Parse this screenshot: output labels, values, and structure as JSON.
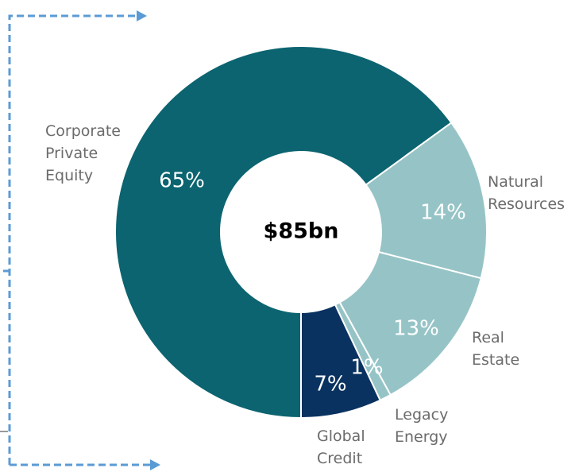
{
  "chart_data": {
    "type": "donut",
    "center_label": "$85bn",
    "categories": [
      "Corporate\nPrivate\nEquity",
      "Natural\nResources",
      "Real\nEstate",
      "Legacy\nEnergy",
      "Global\nCredit"
    ],
    "values": [
      65,
      14,
      13,
      1,
      7
    ],
    "value_labels": [
      "65%",
      "14%",
      "13%",
      "1%",
      "7%"
    ],
    "colors": [
      "#0b6470",
      "#96c4c6",
      "#96c4c6",
      "#96c4c6",
      "#0a3260"
    ]
  }
}
